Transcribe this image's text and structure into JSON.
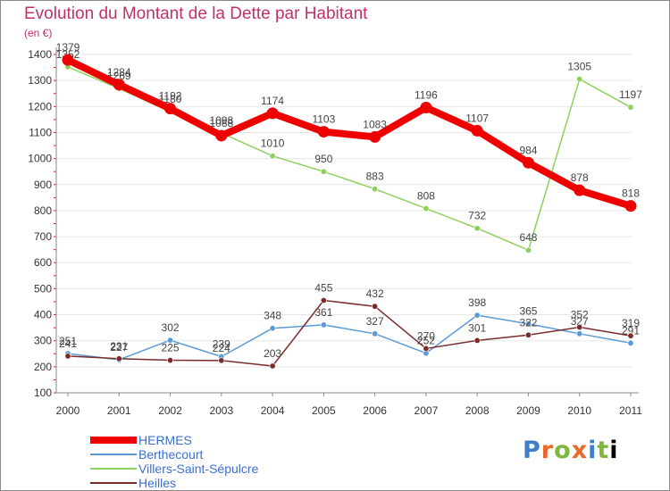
{
  "title": "Evolution du Montant de la Dette par Habitant",
  "unit_label": "(en €)",
  "logo_text": "Proxiti",
  "colors": {
    "title": "#c0306a",
    "axis": "#888888",
    "grid": "#e6e6e6",
    "legend_text": "#3a6fd0"
  },
  "chart_data": {
    "type": "line",
    "x": [
      "2000",
      "2001",
      "2002",
      "2003",
      "2004",
      "2005",
      "2006",
      "2007",
      "2008",
      "2009",
      "2010",
      "2011"
    ],
    "ylim": [
      100,
      1400
    ],
    "yticks": [
      100,
      200,
      300,
      400,
      500,
      600,
      700,
      800,
      900,
      1000,
      1100,
      1200,
      1300,
      1400
    ],
    "grid": "horizontal",
    "legend_position": "bottom-left",
    "series": [
      {
        "name": "Villers-Saint-Sépulcre",
        "color": "#8fd05a",
        "values": [
          1352,
          1269,
          1180,
          1098,
          1010,
          950,
          883,
          808,
          732,
          648,
          1305,
          1197
        ]
      },
      {
        "name": "Berthecourt",
        "color": "#5b9bd5",
        "values": [
          251,
          227,
          302,
          239,
          348,
          361,
          327,
          252,
          398,
          365,
          327,
          291
        ]
      },
      {
        "name": "Heilles",
        "color": "#7a2c2c",
        "values": [
          241,
          231,
          225,
          224,
          203,
          455,
          432,
          270,
          301,
          322,
          352,
          319
        ]
      },
      {
        "name": "HERMES",
        "color": "#ee0000",
        "values": [
          1379,
          1284,
          1192,
          1088,
          1174,
          1103,
          1083,
          1196,
          1107,
          984,
          878,
          818
        ]
      }
    ],
    "legend_order": [
      "HERMES",
      "Berthecourt",
      "Villers-Saint-Sépulcre",
      "Heilles"
    ]
  }
}
